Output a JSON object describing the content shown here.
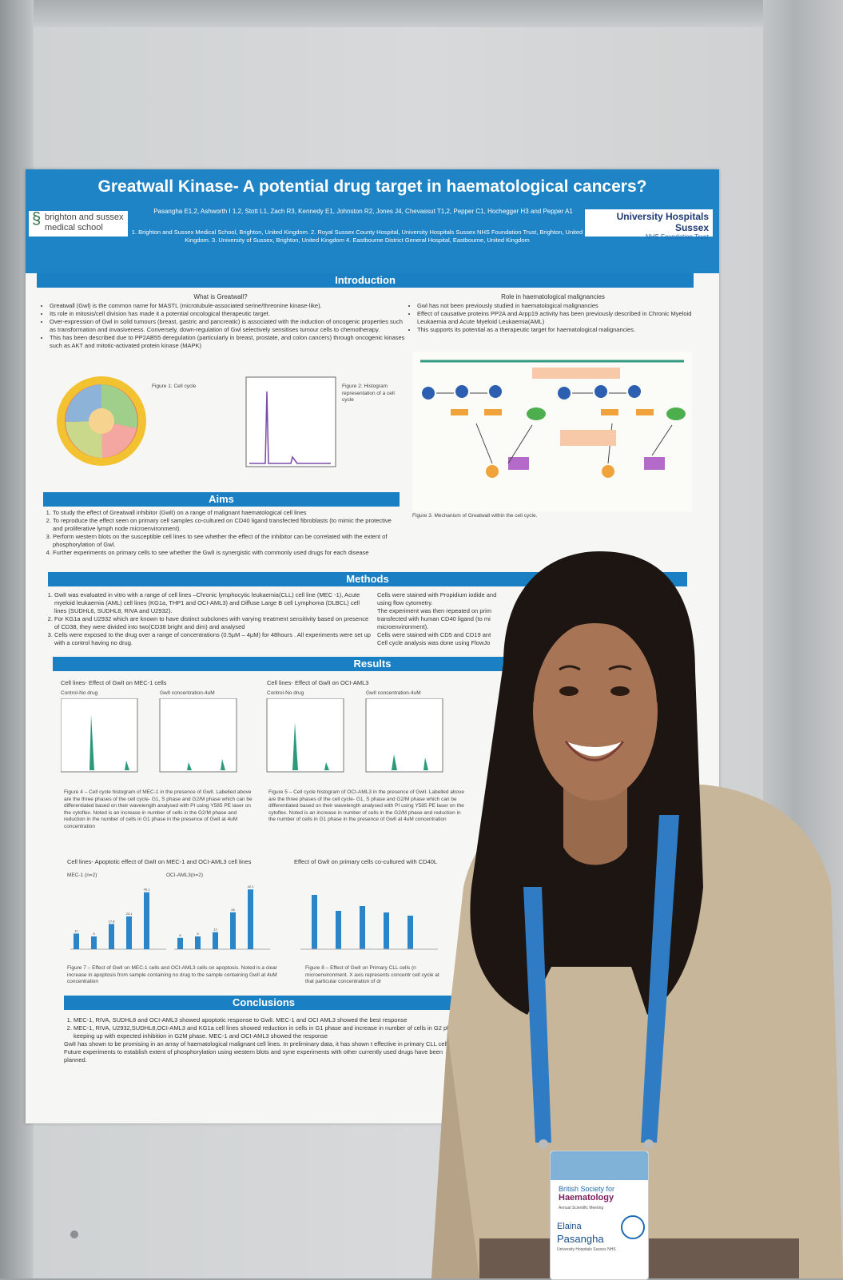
{
  "poster": {
    "title": "Greatwall Kinase- A potential drug target in haematological cancers?",
    "authors": "Pasangha E1,2, Ashworth I 1,2, Stott L1, Zach R3, Kennedy E1, Johnston R2, Jones J4, Chevassut T1,2, Pepper C1, Hochegger H3 and Pepper A1",
    "affiliations": "1. Brighton and Sussex Medical School, Brighton, United Kingdom. 2. Royal Sussex County Hospital, University Hospitals Sussex NHS Foundation Trust, Brighton, United Kingdom. 3. University of Sussex, Brighton, United Kingdom 4. Eastbourne District General Hospital, Eastbourne, United Kingdom",
    "logo_left": "brighton and sussex medical school",
    "logo_right": "University Hospitals Sussex",
    "logo_right_sub": "NHS Foundation Trust",
    "introduction": {
      "heading": "Introduction",
      "what_heading": "What is Greatwall?",
      "what_points": [
        "Greatwall (Gwl) is the common name for MASTL (microtubule-associated serine/threonine kinase-like).",
        "Its role in mitosis/cell division has made it a potential oncological therapeutic target.",
        "Over-expression of Gwl in solid tumours (breast, gastric and pancreatic) is associated with the induction of oncogenic properties such as transformation and invasiveness. Conversely, down-regulation of Gwl selectively sensitises tumour cells to chemotherapy.",
        "This has been described due to PP2AB55 deregulation (particularly in breast, prostate, and colon cancers) through oncogenic kinases such as AKT and mitotic-activated protein kinase (MAPK)"
      ],
      "role_heading": "Role in haematological malignancies",
      "role_points": [
        "Gwl has not been previously studied in haematological malignancies",
        "Effect of causative proteins PP2A and Arpp19 activity has been previously described in Chronic Myeloid Leukaemia and Acute Myeloid Leukaemia(AML)",
        "This supports its potential as a therapeutic target for haematological malignancies."
      ],
      "fig1_caption": "Figure 1: Cell cycle",
      "fig2_caption": "Figure 2: Histogram representation of a cell cycle",
      "fig3_caption": "Figure 3. Mechanism of Greatwall within the cell cycle."
    },
    "aims": {
      "heading": "Aims",
      "items": [
        "To study the effect of Greatwall inhibitor (GwlI) on a range of malignant haematological cell lines",
        "To reproduce the effect seen on primary cell samples co-cultured on CD40 ligand transfected fibroblasts (to mimic the protective and proliferative lymph node microenvironment).",
        "Perform western blots on the susceptible cell lines to see whether the effect of the inhibitor can be correlated with the extent of phosphorylation of Gwl.",
        "Further experiments on primary cells to see whether the GwlI is synergistic with commonly used drugs for each disease"
      ]
    },
    "methods": {
      "heading": "Methods",
      "left": [
        "GwlI was evaluated in vitro with a range of cell lines –Chronic lymphocytic leukaemia(CLL) cell line (MEC -1), Acute myeloid leukaemia (AML) cell lines (KG1a, THP1 and OCI-AML3) and Diffuse Large B cell Lymphoma (DLBCL) cell lines (SUDHL6, SUDHL8, RIVA and U2932).",
        "For KG1a and U2932 which are known to have distinct subclones with varying treatment sensitivity based on presence of CD38, they were divided into two(CD38 bright and dim) and analysed",
        "Cells were exposed to the drug over a range of concentrations (0.5µM – 4µM) for 48hours . All experiments were set up with a control having no drug."
      ],
      "right": [
        "Cells were stained with Propidium iodide and",
        "using flow cytometry.",
        "The experiment was then repeated on prim",
        "transfected with human CD40 ligand (to mi",
        "microenvironment).",
        "Cells were stained with CD5 and CD19 ant",
        "Cell cycle analysis was done using FlowJo"
      ]
    },
    "results": {
      "heading": "Results",
      "panel_a_title": "Cell lines- Effect of GwlI on MEC-1 cells",
      "panel_b_title": "Cell lines- Effect of GwlI on OCI-AML3",
      "control_label": "Control-No drug",
      "drug_label": "GwlI concentration-4uM",
      "fig4": "Figure 4 – Cell cycle histogram of MEC-1 in the presence of GwlI. Labelled above are the three phases of the cell cycle- G1, S phase and G2/M phase which can be differentiated based on their wavelength analysed with PI using Y585 PE laser on the cytoflex. Noted is an increase in number of cells in the G2/M phase and reduction in the number of cells in G1 phase in the presence of GwlI at 4uM concentration",
      "fig5": "Figure 5 – Cell cycle histogram of OCI-AML3 in the presence of GwlI. Labelled above are the three phases of the cell cycle- G1, S phase and G2/M phase which can be differentiated based on their wavelength analysed with PI using Y585 PE laser on the cytoflex. Noted is an increase in number of cells in the G2/M phase and reduction in the number of cells in G1 phase in the presence of GwlI at 4uM concentration",
      "apoptosis_title": "Cell lines- Apoptotic effect of GwlI on MEC-1 and OCI-AML3 cell lines",
      "primary_title": "Effect of GwlI on primary cells co-cultured with CD40L",
      "mec_label": "MEC-1 (n=2)",
      "oci_label": "OCI-AML3(n=2)",
      "fig7": "Figure 7 – Effect of GwlI on MEC-1 cells and OCI-AML3 cells on apoptosis. Noted is a clear increase in apoptosis from sample containing no drug to the sample containing GwlI at 4uM concentration",
      "fig8": "Figure 8 – Effect of GwlI on Primary CLL cells (n microenvironment. X axis represents concentr cell cycle at that particular concentration of dr"
    },
    "conclusions": {
      "heading": "Conclusions",
      "items": [
        "MEC-1, RIVA, SUDHL8 and OCI-AML3 showed apoptotic response to GwlI. MEC-1 and OCI AML3 showed the best response",
        "MEC-1, RIVA, U2932,SUDHL8,OCI-AML3 and KG1a cell lines showed reduction in cells in G1 phase and increase in number of cells in G2 phase keeping up with expected inhibition in G2M phase. MEC-1 and OCI-AML3 showed the response"
      ],
      "summary": "GwlI has shown to be promising in an array of haematological malignant cell lines. In preliminary data, it has shown t effective in primary CLL cells. Future experiments to establish extent of phosphorylation using western blots and syne experiments with other currently used drugs have been planned."
    }
  },
  "badge": {
    "org": "British Society for",
    "org_bold": "Haematology",
    "meeting": "Annual Scientific Meeting",
    "first_name": "Elaina",
    "last_name": "Pasangha",
    "org2": "University Hospitals Sussex NHS"
  },
  "chart_data": [
    {
      "type": "bar",
      "title": "MEC-1 (n=2)",
      "categories": [
        "",
        "",
        "",
        "",
        ""
      ],
      "values": [
        11,
        9,
        17.8,
        23.1,
        40.1
      ]
    },
    {
      "type": "bar",
      "title": "OCI-AML3(n=2)",
      "categories": [
        "",
        "",
        "",
        "",
        ""
      ],
      "values": [
        8,
        9,
        12,
        26,
        42.1
      ]
    }
  ],
  "colors": {
    "poster_blue": "#1f84c6",
    "bar_blue": "#2b86c9",
    "histogram_green": "#2c9a7a"
  }
}
